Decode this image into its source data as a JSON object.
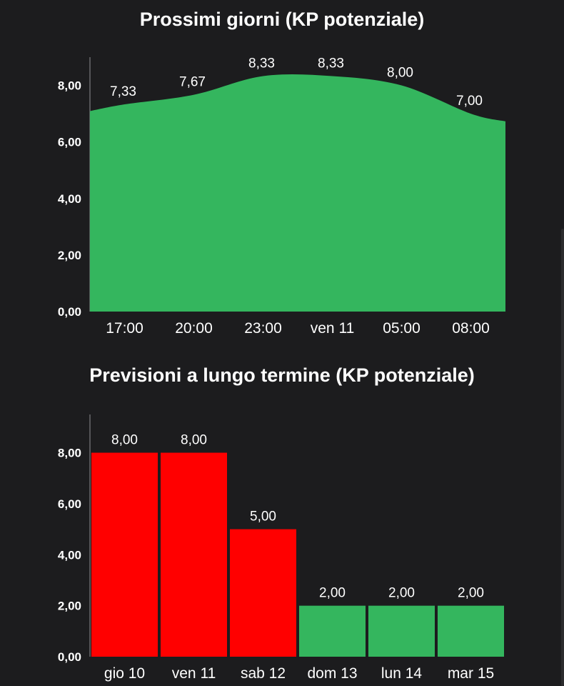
{
  "chart_data": [
    {
      "type": "area",
      "title": "Prossimi giorni (KP potenziale)",
      "x": [
        "17:00",
        "20:00",
        "23:00",
        "ven 11",
        "05:00",
        "08:00"
      ],
      "values": [
        7.33,
        7.67,
        8.33,
        8.33,
        8.0,
        7.0
      ],
      "data_labels": [
        "7,33",
        "7,67",
        "8,33",
        "8,33",
        "8,00",
        "7,00"
      ],
      "y_ticks": [
        "0,00",
        "2,00",
        "4,00",
        "6,00",
        "8,00"
      ],
      "ylim": [
        0,
        9
      ],
      "grid": false,
      "color": "#34b65e"
    },
    {
      "type": "bar",
      "title": "Previsioni a lungo termine (KP potenziale)",
      "categories": [
        "gio 10",
        "ven 11",
        "sab 12",
        "dom 13",
        "lun 14",
        "mar 15"
      ],
      "values": [
        8.0,
        8.0,
        5.0,
        2.0,
        2.0,
        2.0
      ],
      "data_labels": [
        "8,00",
        "8,00",
        "5,00",
        "2,00",
        "2,00",
        "2,00"
      ],
      "y_ticks": [
        "0,00",
        "2,00",
        "4,00",
        "6,00",
        "8,00"
      ],
      "ylim": [
        0,
        9.5
      ],
      "grid": false,
      "bar_colors": [
        "#ff0000",
        "#ff0000",
        "#ff0000",
        "#34b65e",
        "#34b65e",
        "#34b65e"
      ]
    }
  ]
}
